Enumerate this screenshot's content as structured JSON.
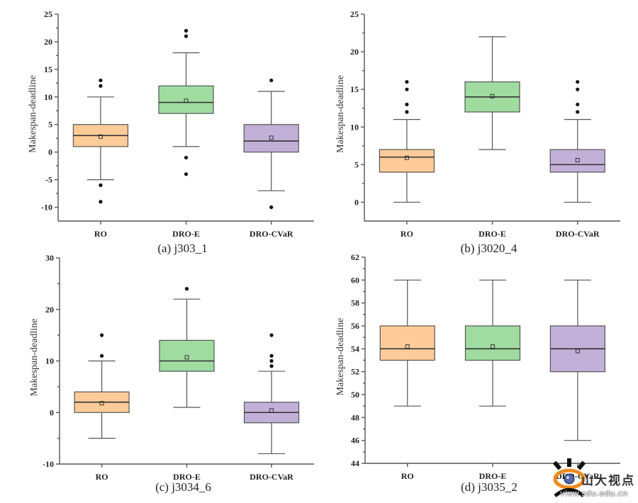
{
  "chart_data": [
    {
      "type": "box",
      "caption": "(a) j303_1",
      "ylabel": "Makespan-deadline",
      "xlabel": "",
      "ylim": [
        -12.5,
        25
      ],
      "yticks": [
        -10,
        -5,
        0,
        5,
        10,
        15,
        20,
        25
      ],
      "grid": false,
      "categories": [
        "RO",
        "DRO-E",
        "DRO-CVaR"
      ],
      "series": [
        {
          "name": "RO",
          "color": "#FFCC99",
          "q1": 1,
          "median": 3,
          "q3": 5,
          "mean": 2.8,
          "whisker_low": -5,
          "whisker_high": 10,
          "outliers": [
            12,
            13,
            -6,
            -9
          ]
        },
        {
          "name": "DRO-E",
          "color": "#A0DCA0",
          "q1": 7,
          "median": 9,
          "q3": 12,
          "mean": 9.3,
          "whisker_low": 1,
          "whisker_high": 18,
          "outliers": [
            21,
            22,
            -1,
            -4
          ]
        },
        {
          "name": "DRO-CVaR",
          "color": "#C2B0D8",
          "q1": 0,
          "median": 2,
          "q3": 5,
          "mean": 2.6,
          "whisker_low": -7,
          "whisker_high": 11,
          "outliers": [
            13,
            -10
          ]
        }
      ]
    },
    {
      "type": "box",
      "caption": "(b) j3020_4",
      "ylabel": "Makespan-deadline",
      "xlabel": "",
      "ylim": [
        -2.5,
        25
      ],
      "yticks": [
        0,
        5,
        10,
        15,
        20,
        25
      ],
      "grid": false,
      "categories": [
        "RO",
        "DRO-E",
        "DRO-CVaR"
      ],
      "series": [
        {
          "name": "RO",
          "color": "#FFCC99",
          "q1": 4,
          "median": 6,
          "q3": 7,
          "mean": 5.9,
          "whisker_low": 0,
          "whisker_high": 11,
          "outliers": [
            12,
            13,
            15,
            16
          ]
        },
        {
          "name": "DRO-E",
          "color": "#A0DCA0",
          "q1": 12,
          "median": 14,
          "q3": 16,
          "mean": 14.1,
          "whisker_low": 7,
          "whisker_high": 22,
          "outliers": []
        },
        {
          "name": "DRO-CVaR",
          "color": "#C2B0D8",
          "q1": 4,
          "median": 5,
          "q3": 7,
          "mean": 5.6,
          "whisker_low": 0,
          "whisker_high": 11,
          "outliers": [
            12,
            13,
            15,
            16
          ]
        }
      ]
    },
    {
      "type": "box",
      "caption": "(c) j3034_6",
      "ylabel": "Makespan-deadline",
      "xlabel": "",
      "ylim": [
        -10,
        30
      ],
      "yticks": [
        -10,
        0,
        10,
        20,
        30
      ],
      "grid": false,
      "categories": [
        "RO",
        "DRO-E",
        "DRO-CVaR"
      ],
      "series": [
        {
          "name": "RO",
          "color": "#FFCC99",
          "q1": 0,
          "median": 2,
          "q3": 4,
          "mean": 1.8,
          "whisker_low": -5,
          "whisker_high": 10,
          "outliers": [
            11,
            15
          ]
        },
        {
          "name": "DRO-E",
          "color": "#A0DCA0",
          "q1": 8,
          "median": 10,
          "q3": 14,
          "mean": 10.7,
          "whisker_low": 1,
          "whisker_high": 22,
          "outliers": [
            24
          ]
        },
        {
          "name": "DRO-CVaR",
          "color": "#C2B0D8",
          "q1": -2,
          "median": 0,
          "q3": 2,
          "mean": 0.4,
          "whisker_low": -8,
          "whisker_high": 8,
          "outliers": [
            9,
            10,
            11,
            15
          ]
        }
      ]
    },
    {
      "type": "box",
      "caption": "(d) j3035_2",
      "ylabel": "Makespan-deadline",
      "xlabel": "",
      "ylim": [
        44,
        62
      ],
      "yticks": [
        44,
        46,
        48,
        50,
        52,
        54,
        56,
        58,
        60,
        62
      ],
      "grid": false,
      "categories": [
        "RO",
        "DRO-E",
        "DRO-CVaR"
      ],
      "series": [
        {
          "name": "RO",
          "color": "#FFCC99",
          "q1": 53,
          "median": 54,
          "q3": 56,
          "mean": 54.2,
          "whisker_low": 49,
          "whisker_high": 60,
          "outliers": []
        },
        {
          "name": "DRO-E",
          "color": "#A0DCA0",
          "q1": 53,
          "median": 54,
          "q3": 56,
          "mean": 54.2,
          "whisker_low": 49,
          "whisker_high": 60,
          "outliers": []
        },
        {
          "name": "DRO-CVaR",
          "color": "#C2B0D8",
          "q1": 52,
          "median": 54,
          "q3": 56,
          "mean": 53.8,
          "whisker_low": 46,
          "whisker_high": 60,
          "outliers": []
        }
      ]
    }
  ],
  "watermark": {
    "text": "山大视点",
    "url": "view.sdu.edu.cn",
    "icon": "eye-logo-icon"
  }
}
